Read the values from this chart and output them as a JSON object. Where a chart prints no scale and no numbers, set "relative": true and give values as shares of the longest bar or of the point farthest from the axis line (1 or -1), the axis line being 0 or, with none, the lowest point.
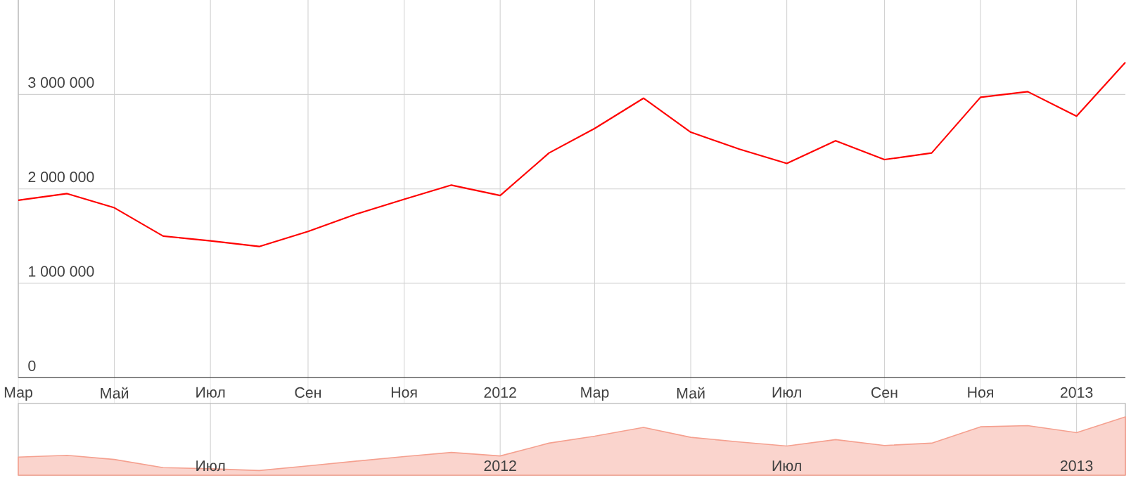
{
  "chart_data": [
    {
      "type": "line",
      "color": "#ff0000",
      "grid": true,
      "x": [
        "2011-03",
        "2011-04",
        "2011-05",
        "2011-06",
        "2011-07",
        "2011-08",
        "2011-09",
        "2011-10",
        "2011-11",
        "2011-12",
        "2012-01",
        "2012-02",
        "2012-03",
        "2012-04",
        "2012-05",
        "2012-06",
        "2012-07",
        "2012-08",
        "2012-09",
        "2012-10",
        "2012-11",
        "2012-12",
        "2013-01",
        "2013-02"
      ],
      "values": [
        1880000,
        1950000,
        1800000,
        1500000,
        1450000,
        1390000,
        1550000,
        1730000,
        1890000,
        2040000,
        1930000,
        2380000,
        2640000,
        2960000,
        2600000,
        2420000,
        2270000,
        2510000,
        2310000,
        2380000,
        2970000,
        3030000,
        2770000,
        3340000
      ],
      "xlim": [
        "2011-03",
        "2013-02"
      ],
      "xticks": [
        {
          "value": "2011-03",
          "label": "Мар"
        },
        {
          "value": "2011-05",
          "label": "Май"
        },
        {
          "value": "2011-07",
          "label": "Июл"
        },
        {
          "value": "2011-09",
          "label": "Сен"
        },
        {
          "value": "2011-11",
          "label": "Ноя"
        },
        {
          "value": "2012-01",
          "label": "2012"
        },
        {
          "value": "2012-03",
          "label": "Мар"
        },
        {
          "value": "2012-05",
          "label": "Май"
        },
        {
          "value": "2012-07",
          "label": "Июл"
        },
        {
          "value": "2012-09",
          "label": "Сен"
        },
        {
          "value": "2012-11",
          "label": "Ноя"
        },
        {
          "value": "2013-01",
          "label": "2013"
        }
      ],
      "ylim": [
        0,
        4000000
      ],
      "yticks": [
        0,
        {
          "value": 1000000,
          "label": "1 000 000"
        },
        {
          "value": 2000000,
          "label": "2 000 000"
        },
        {
          "value": 3000000,
          "label": "3 000 000"
        }
      ]
    },
    {
      "type": "area",
      "color": "#f5a08f",
      "relative": true,
      "grid": "x",
      "tick_labels": "x",
      "x": [
        "2011-03",
        "2011-04",
        "2011-05",
        "2011-06",
        "2011-07",
        "2011-08",
        "2011-09",
        "2011-10",
        "2011-11",
        "2011-12",
        "2012-01",
        "2012-02",
        "2012-03",
        "2012-04",
        "2012-05",
        "2012-06",
        "2012-07",
        "2012-08",
        "2012-09",
        "2012-10",
        "2012-11",
        "2012-12",
        "2013-01",
        "2013-02"
      ],
      "values": [
        0.31,
        0.34,
        0.27,
        0.13,
        0.11,
        0.08,
        0.16,
        0.24,
        0.32,
        0.39,
        0.33,
        0.55,
        0.67,
        0.82,
        0.65,
        0.57,
        0.5,
        0.61,
        0.51,
        0.55,
        0.83,
        0.85,
        0.73,
        1.0
      ],
      "xlim": [
        "2011-03",
        "2013-02"
      ],
      "xticks": [
        {
          "value": "2011-07",
          "label": "Июл"
        },
        {
          "value": "2012-01",
          "label": "2012"
        },
        {
          "value": "2012-07",
          "label": "Июл"
        },
        {
          "value": "2013-01",
          "label": "2013"
        }
      ]
    }
  ]
}
